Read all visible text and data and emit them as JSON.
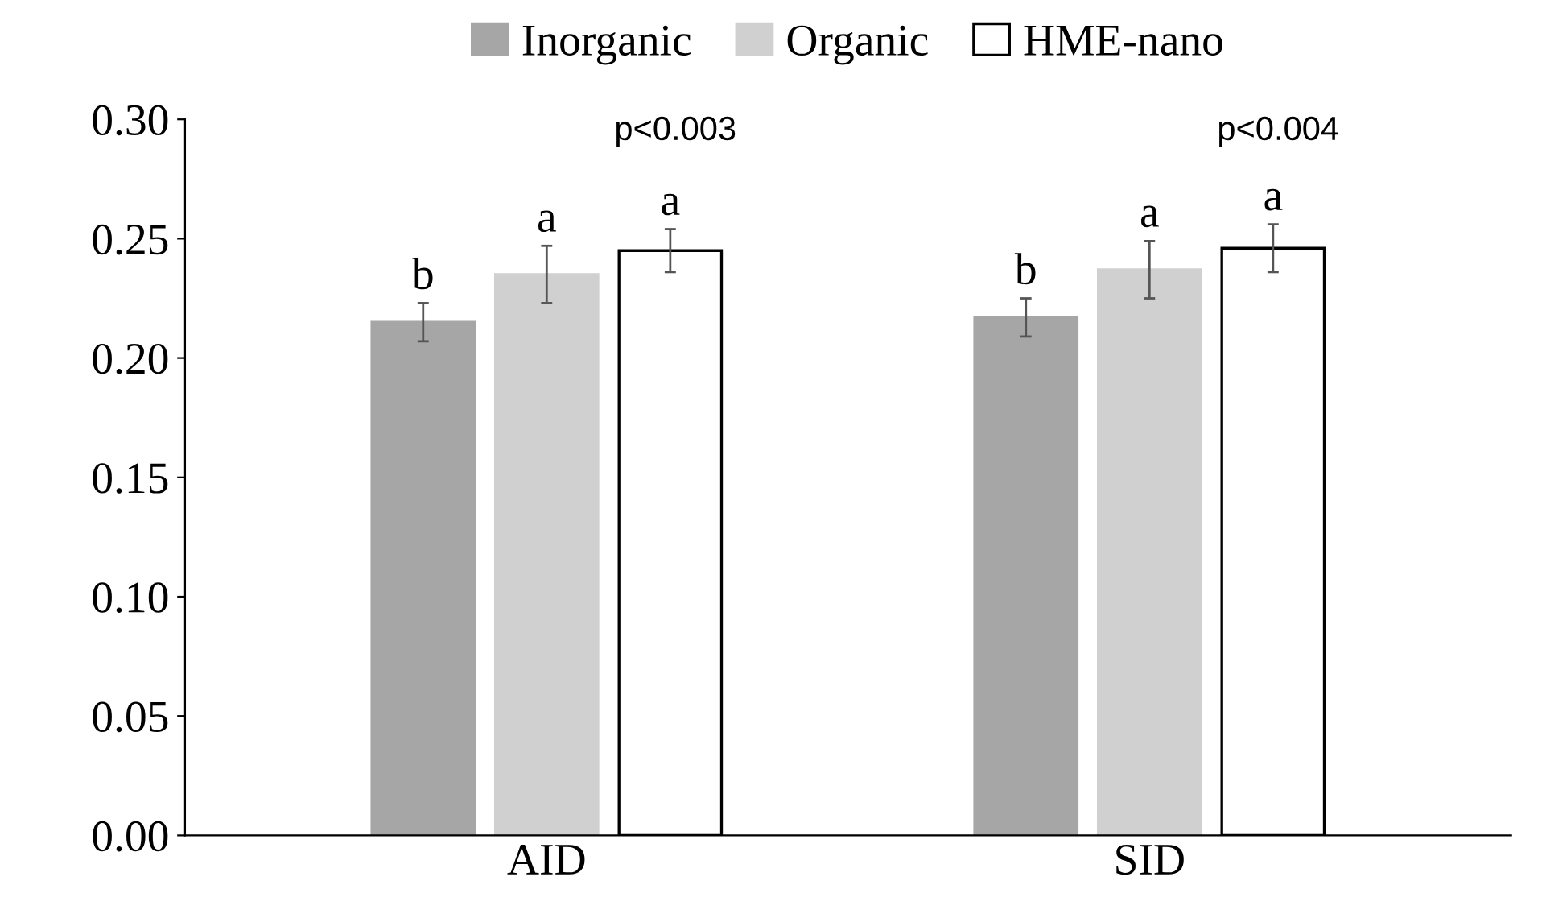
{
  "chart_data": {
    "type": "bar",
    "categories": [
      "AID",
      "SID"
    ],
    "series": [
      {
        "name": "Inorganic",
        "color": "#a6a6a6",
        "values": [
          0.215,
          0.217
        ],
        "errors": [
          0.008,
          0.008
        ],
        "value_labels": [
          "b",
          "b"
        ]
      },
      {
        "name": "Organic",
        "color": "#d0d0d0",
        "values": [
          0.235,
          0.237
        ],
        "errors": [
          0.012,
          0.012
        ],
        "value_labels": [
          "a",
          "a"
        ]
      },
      {
        "name": "HME-nano",
        "color": "#ffffff",
        "values": [
          0.245,
          0.246
        ],
        "errors": [
          0.009,
          0.01
        ],
        "value_labels": [
          "a",
          "a"
        ]
      }
    ],
    "annotations": [
      "p<0.003",
      "p<0.004"
    ],
    "ylim": [
      0,
      0.3
    ],
    "yticks": [
      {
        "value": 0,
        "label": "0.00"
      },
      {
        "value": 0.05,
        "label": "0.05"
      },
      {
        "value": 0.1,
        "label": "0.10"
      },
      {
        "value": 0.15,
        "label": "0.15"
      },
      {
        "value": 0.2,
        "label": "0.20"
      },
      {
        "value": 0.25,
        "label": "0.25"
      },
      {
        "value": 0.3,
        "label": "0.30"
      }
    ],
    "grid": false,
    "legend": "top"
  }
}
